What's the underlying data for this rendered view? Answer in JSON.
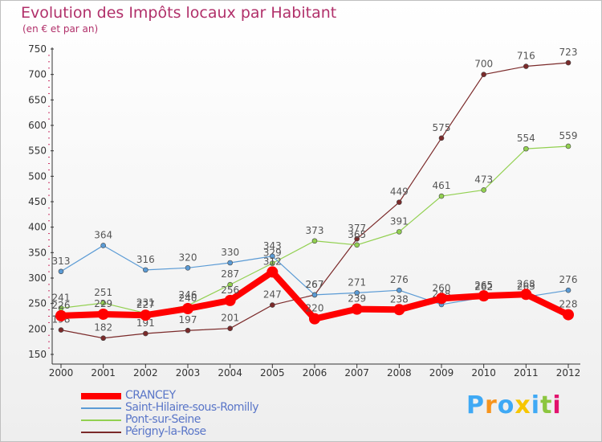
{
  "header": {
    "title": "Evolution des Impôts locaux par Habitant",
    "subtitle": "(en € et par an)"
  },
  "brand": {
    "text": "Proxiti",
    "colors": [
      "#3fa9f5",
      "#f7941d",
      "#3fa9f5",
      "#f7c600",
      "#3fa9f5",
      "#8cc63f",
      "#e2136e"
    ]
  },
  "colors": {
    "title": "#b1306a",
    "axis": "#333333",
    "tick_marks": "#cc3366",
    "value_labels": "#555555"
  },
  "chart_data": {
    "type": "line",
    "title": "Evolution des Impôts locaux par Habitant",
    "subtitle": "(en € et par an)",
    "x": [
      2000,
      2001,
      2002,
      2003,
      2004,
      2005,
      2006,
      2007,
      2008,
      2009,
      2010,
      2011,
      2012
    ],
    "ylim": [
      150,
      750
    ],
    "yticks": [
      150,
      200,
      250,
      300,
      350,
      400,
      450,
      500,
      550,
      600,
      650,
      700,
      750
    ],
    "grid": false,
    "legend_position": "bottom-left",
    "series": [
      {
        "name": "CRANCEY",
        "color": "#ff0000",
        "values": [
          226,
          229,
          227,
          240,
          256,
          312,
          220,
          239,
          238,
          260,
          265,
          268,
          228
        ]
      },
      {
        "name": "Saint-Hilaire-sous-Romilly",
        "color": "#5b9bd5",
        "values": [
          313,
          364,
          316,
          320,
          330,
          343,
          267,
          271,
          276,
          248,
          262,
          263,
          276
        ]
      },
      {
        "name": "Pont-sur-Seine",
        "color": "#92d050",
        "values": [
          241,
          251,
          231,
          246,
          287,
          329,
          373,
          365,
          391,
          461,
          473,
          554,
          559
        ]
      },
      {
        "name": "Périgny-la-Rose",
        "color": "#7b2a2a",
        "values": [
          198,
          182,
          191,
          197,
          201,
          247,
          267,
          377,
          449,
          575,
          700,
          716,
          723
        ]
      }
    ]
  }
}
